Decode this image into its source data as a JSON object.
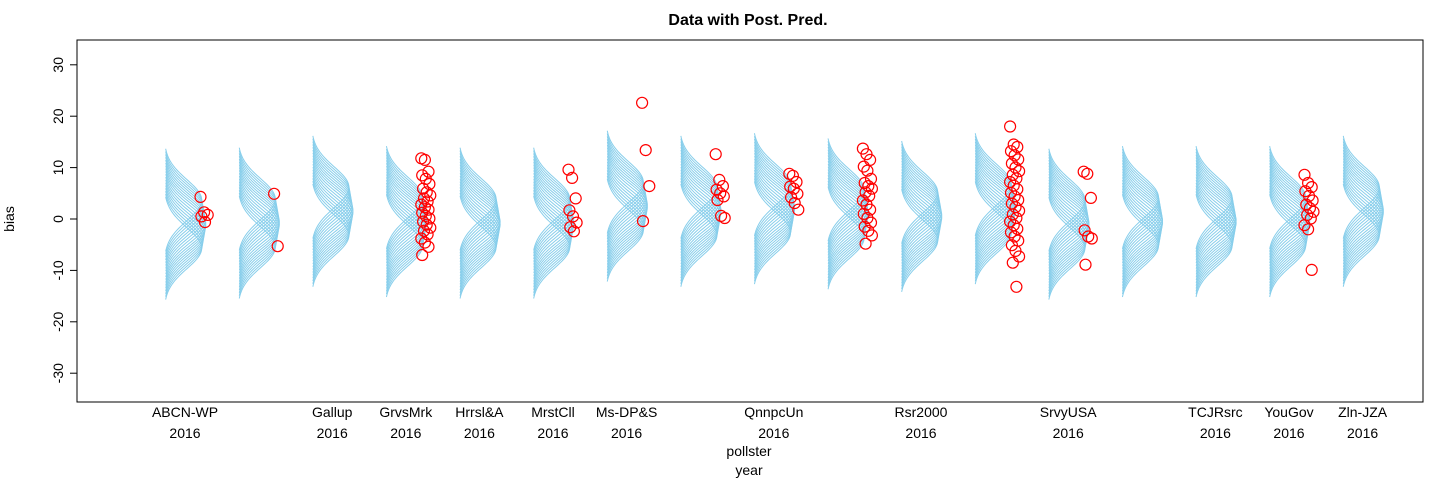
{
  "chart_data": {
    "type": "scatter",
    "title": "Data with Post. Pred.",
    "ylabel": "bias",
    "xlabel": "pollster\nyear",
    "xlabel_lines": [
      "pollster",
      "year"
    ],
    "ylim": [
      -35,
      35
    ],
    "yticks": [
      -30,
      -20,
      -10,
      0,
      10,
      20,
      30
    ],
    "grid": false,
    "legend": "none",
    "colors": {
      "curves": "#87CEEB",
      "points": "#FF0000",
      "axis": "#000000"
    },
    "groups": [
      {
        "pollster": "ABCN-WP",
        "year": "2016",
        "show_label": true,
        "mu": -1.0,
        "points": [
          4.3,
          1.3,
          0.8,
          0.5,
          -0.6
        ]
      },
      {
        "pollster": "",
        "year": "",
        "show_label": false,
        "mu": -0.8,
        "points": [
          4.9,
          -5.3
        ]
      },
      {
        "pollster": "Gallup",
        "year": "2016",
        "show_label": true,
        "mu": 1.5,
        "points": []
      },
      {
        "pollster": "GrvsMrk",
        "year": "2016",
        "show_label": true,
        "mu": -0.5,
        "points": [
          11.8,
          11.5,
          9.2,
          8.5,
          7.8,
          6.8,
          5.9,
          5.2,
          4.6,
          4.0,
          3.4,
          2.8,
          2.3,
          1.8,
          1.2,
          0.6,
          0.1,
          -0.5,
          -1.1,
          -1.7,
          -2.3,
          -3.0,
          -3.8,
          -4.6,
          -5.4,
          -7.0
        ]
      },
      {
        "pollster": "Hrrsl&A",
        "year": "2016",
        "show_label": true,
        "mu": -0.8,
        "points": []
      },
      {
        "pollster": "MrstCll",
        "year": "2016",
        "show_label": true,
        "mu": -0.8,
        "points": [
          9.6,
          8.0,
          4.0,
          1.7,
          0.5,
          -0.7,
          -1.6,
          -2.4
        ]
      },
      {
        "pollster": "Ms-DP&S",
        "year": "2016",
        "show_label": true,
        "mu": 2.5,
        "points": [
          22.6,
          13.4,
          6.4,
          -0.4
        ]
      },
      {
        "pollster": "",
        "year": "",
        "show_label": false,
        "mu": 1.5,
        "points": [
          12.6,
          7.6,
          6.4,
          5.7,
          5.0,
          4.4,
          3.7,
          0.6,
          0.2
        ]
      },
      {
        "pollster": "QnnpcUn",
        "year": "2016",
        "show_label": true,
        "mu": 2.0,
        "points": [
          8.8,
          8.4,
          7.2,
          6.3,
          5.9,
          4.9,
          4.2,
          3.1,
          1.8
        ]
      },
      {
        "pollster": "",
        "year": "",
        "show_label": false,
        "mu": 1.0,
        "points": [
          13.7,
          12.6,
          11.5,
          10.2,
          9.4,
          7.8,
          7.0,
          6.4,
          5.9,
          5.2,
          4.5,
          3.6,
          2.8,
          1.8,
          1.0,
          0.2,
          -0.7,
          -1.5,
          -2.3,
          -3.2,
          -4.8
        ]
      },
      {
        "pollster": "Rsr2000",
        "year": "2016",
        "show_label": true,
        "mu": 0.5,
        "points": []
      },
      {
        "pollster": "",
        "year": "",
        "show_label": false,
        "mu": 2.0,
        "points": [
          18.0,
          14.5,
          14.0,
          13.2,
          12.4,
          11.6,
          10.8,
          10.0,
          9.3,
          8.6,
          7.9,
          7.2,
          6.5,
          5.8,
          5.1,
          4.4,
          3.7,
          3.0,
          2.3,
          1.6,
          0.9,
          0.2,
          -0.5,
          -1.2,
          -1.9,
          -2.6,
          -3.4,
          -4.2,
          -5.1,
          -6.2,
          -7.3,
          -8.5,
          -13.2
        ]
      },
      {
        "pollster": "SrvyUSA",
        "year": "2016",
        "show_label": true,
        "mu": -1.0,
        "points": [
          9.2,
          8.8,
          4.1,
          -2.2,
          -3.4,
          -3.8,
          -8.9
        ]
      },
      {
        "pollster": "",
        "year": "",
        "show_label": false,
        "mu": -0.5,
        "points": []
      },
      {
        "pollster": "TCJRsrc",
        "year": "2016",
        "show_label": true,
        "mu": -0.5,
        "points": []
      },
      {
        "pollster": "YouGov",
        "year": "2016",
        "show_label": true,
        "mu": -0.5,
        "points": [
          8.6,
          7.0,
          6.2,
          5.4,
          4.5,
          3.6,
          2.8,
          2.1,
          1.4,
          0.8,
          0.1,
          -1.2,
          -2.0,
          -9.9
        ]
      },
      {
        "pollster": "Zln-JZA",
        "year": "2016",
        "show_label": true,
        "mu": 1.5,
        "points": []
      }
    ]
  }
}
